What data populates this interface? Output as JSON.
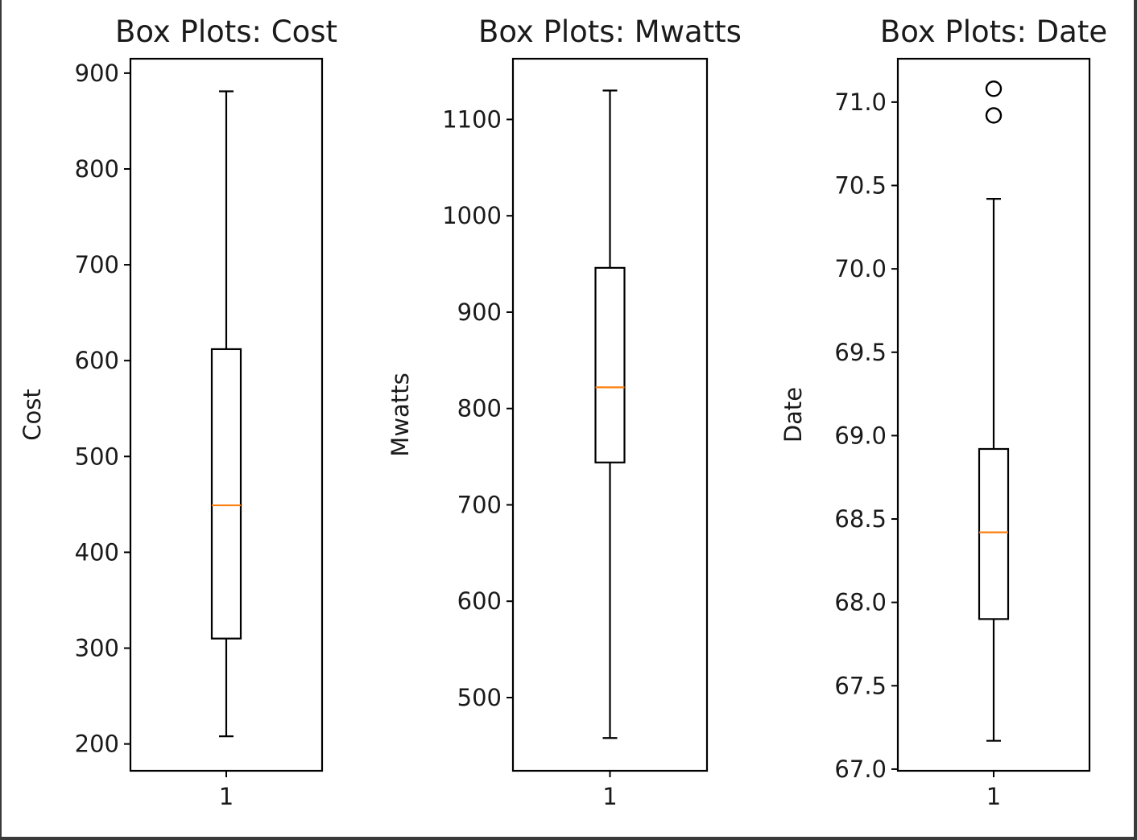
{
  "chart_data": [
    {
      "type": "box",
      "title": "Box Plots: Cost",
      "ylabel": "Cost",
      "categories": [
        "1"
      ],
      "ylim": [
        172,
        915
      ],
      "yticks": [
        200,
        300,
        400,
        500,
        600,
        700,
        800,
        900
      ],
      "ytick_labels": [
        "200",
        "300",
        "400",
        "500",
        "600",
        "700",
        "800",
        "900"
      ],
      "boxes": [
        {
          "name": "1",
          "whislo": 208,
          "q1": 310,
          "median": 449,
          "q3": 612,
          "whishi": 881,
          "fliers": []
        }
      ]
    },
    {
      "type": "box",
      "title": "Box Plots: Mwatts",
      "ylabel": "Mwatts",
      "categories": [
        "1"
      ],
      "ylim": [
        424,
        1163
      ],
      "yticks": [
        500,
        600,
        700,
        800,
        900,
        1000,
        1100
      ],
      "ytick_labels": [
        "500",
        "600",
        "700",
        "800",
        "900",
        "1000",
        "1100"
      ],
      "boxes": [
        {
          "name": "1",
          "whislo": 458,
          "q1": 744,
          "median": 822,
          "q3": 946,
          "whishi": 1130,
          "fliers": []
        }
      ]
    },
    {
      "type": "box",
      "title": "Box Plots: Date",
      "ylabel": "Date",
      "categories": [
        "1"
      ],
      "ylim": [
        66.99,
        71.26
      ],
      "yticks": [
        67.0,
        67.5,
        68.0,
        68.5,
        69.0,
        69.5,
        70.0,
        70.5,
        71.0
      ],
      "ytick_labels": [
        "67.0",
        "67.5",
        "68.0",
        "68.5",
        "69.0",
        "69.5",
        "70.0",
        "70.5",
        "71.0"
      ],
      "boxes": [
        {
          "name": "1",
          "whislo": 67.17,
          "q1": 67.9,
          "median": 68.42,
          "q3": 68.92,
          "whishi": 70.42,
          "fliers": [
            70.92,
            71.08
          ]
        }
      ]
    }
  ],
  "colors": {
    "box": "#000000",
    "median": "#ff7f0e",
    "background": "#ffffff"
  }
}
